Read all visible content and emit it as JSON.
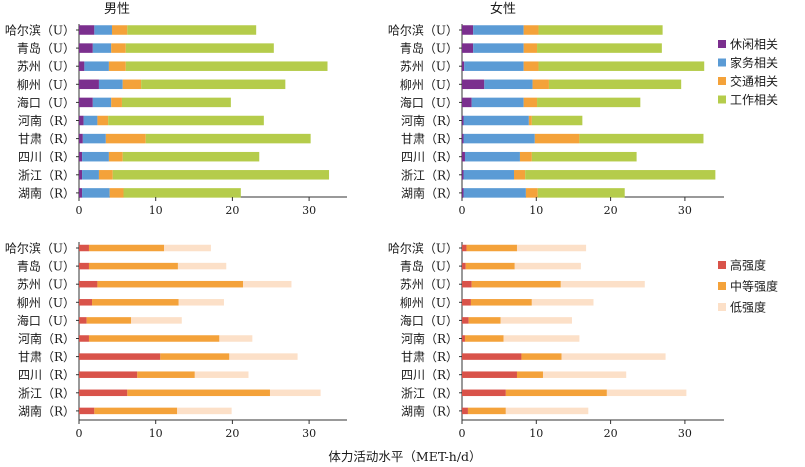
{
  "chart_data": [
    {
      "type": "bar",
      "orientation": "horizontal",
      "stacked": true,
      "title": "男性",
      "categories": [
        "哈尔滨（U）",
        "青岛（U）",
        "苏州（U）",
        "柳州（U）",
        "海口（U）",
        "河南（R）",
        "甘肃（R）",
        "四川（R）",
        "浙江（R）",
        "湖南（R）"
      ],
      "series": [
        {
          "name": "休闲相关",
          "color": "#7b2f8e",
          "values": [
            2.0,
            1.8,
            0.7,
            2.6,
            1.8,
            0.6,
            0.5,
            0.4,
            0.4,
            0.4
          ]
        },
        {
          "name": "家务相关",
          "color": "#5b9bd5",
          "values": [
            2.3,
            2.4,
            3.2,
            3.1,
            2.4,
            1.8,
            3.0,
            3.5,
            2.2,
            3.6
          ]
        },
        {
          "name": "交通相关",
          "color": "#f4a23a",
          "values": [
            2.0,
            1.9,
            2.2,
            2.4,
            1.4,
            1.4,
            5.2,
            1.8,
            1.8,
            1.8
          ]
        },
        {
          "name": "工作相关",
          "color": "#b5cc4b",
          "values": [
            16.8,
            19.3,
            26.3,
            18.8,
            14.2,
            20.3,
            21.5,
            17.8,
            28.2,
            15.3
          ]
        }
      ],
      "xlim": [
        0,
        35
      ],
      "xticks": [
        0,
        10,
        20,
        30
      ],
      "legend": "right"
    },
    {
      "type": "bar",
      "orientation": "horizontal",
      "stacked": true,
      "title": "女性",
      "categories": [
        "哈尔滨（U）",
        "青岛（U）",
        "苏州（U）",
        "柳州（U）",
        "海口（U）",
        "河南（R）",
        "甘肃（R）",
        "四川（R）",
        "浙江（R）",
        "湖南（R）"
      ],
      "series": [
        {
          "name": "休闲相关",
          "color": "#7b2f8e",
          "values": [
            1.5,
            1.5,
            0.3,
            3.0,
            1.3,
            0.2,
            0.2,
            0.4,
            0.2,
            0.2
          ]
        },
        {
          "name": "家务相关",
          "color": "#5b9bd5",
          "values": [
            6.8,
            6.8,
            8.0,
            6.5,
            7.0,
            8.8,
            9.6,
            7.4,
            6.8,
            8.4
          ]
        },
        {
          "name": "交通相关",
          "color": "#f4a23a",
          "values": [
            2.0,
            1.8,
            2.0,
            2.2,
            1.8,
            0.4,
            6.0,
            1.6,
            1.5,
            1.6
          ]
        },
        {
          "name": "工作相关",
          "color": "#b5cc4b",
          "values": [
            16.7,
            16.8,
            22.3,
            17.8,
            13.9,
            6.8,
            16.7,
            14.1,
            25.6,
            11.7
          ]
        }
      ],
      "xlim": [
        0,
        35
      ],
      "xticks": [
        0,
        10,
        20,
        30
      ],
      "legend": "right",
      "legend_entries": [
        "休闲相关",
        "家务相关",
        "交通相关",
        "工作相关"
      ]
    },
    {
      "type": "bar",
      "orientation": "horizontal",
      "stacked": true,
      "title": "",
      "categories": [
        "哈尔滨（U）",
        "青岛（U）",
        "苏州（U）",
        "柳州（U）",
        "海口（U）",
        "河南（R）",
        "甘肃（R）",
        "四川（R）",
        "浙江（R）",
        "湖南（R）"
      ],
      "series": [
        {
          "name": "高强度",
          "color": "#d9534a",
          "values": [
            1.3,
            1.3,
            2.4,
            1.7,
            1.0,
            1.3,
            10.6,
            7.6,
            6.3,
            2.0
          ]
        },
        {
          "name": "中等强度",
          "color": "#f4a23a",
          "values": [
            9.8,
            11.6,
            19.0,
            11.3,
            5.8,
            17.0,
            9.0,
            7.5,
            18.6,
            10.8
          ]
        },
        {
          "name": "低强度",
          "color": "#fce0c8",
          "values": [
            6.1,
            6.3,
            6.3,
            5.9,
            6.6,
            4.3,
            8.9,
            7.0,
            6.6,
            7.1
          ]
        }
      ],
      "xlim": [
        0,
        35
      ],
      "xticks": [
        0,
        10,
        20,
        30
      ],
      "xlabel": "体力活动水平（MET-h/d）"
    },
    {
      "type": "bar",
      "orientation": "horizontal",
      "stacked": true,
      "title": "",
      "categories": [
        "哈尔滨（U）",
        "青岛（U）",
        "苏州（U）",
        "柳州（U）",
        "海口（U）",
        "河南（R）",
        "甘肃（R）",
        "四川（R）",
        "浙江（R）",
        "湖南（R）"
      ],
      "series": [
        {
          "name": "高强度",
          "color": "#d9534a",
          "values": [
            0.6,
            0.5,
            1.3,
            1.2,
            0.9,
            0.4,
            8.0,
            7.4,
            5.9,
            0.8
          ]
        },
        {
          "name": "中等强度",
          "color": "#f4a23a",
          "values": [
            6.8,
            6.6,
            12.0,
            8.2,
            4.3,
            5.2,
            5.4,
            3.5,
            13.6,
            5.1
          ]
        },
        {
          "name": "低强度",
          "color": "#fce0c8",
          "values": [
            9.3,
            8.9,
            11.3,
            8.3,
            9.6,
            10.2,
            14.0,
            11.2,
            10.7,
            11.1
          ]
        }
      ],
      "xlim": [
        0,
        35
      ],
      "xticks": [
        0,
        10,
        20,
        30
      ],
      "legend": "right",
      "legend_entries": [
        "高强度",
        "中等强度",
        "低强度"
      ]
    }
  ],
  "figure": {
    "xlabel": "体力活动水平（MET-h/d）"
  }
}
